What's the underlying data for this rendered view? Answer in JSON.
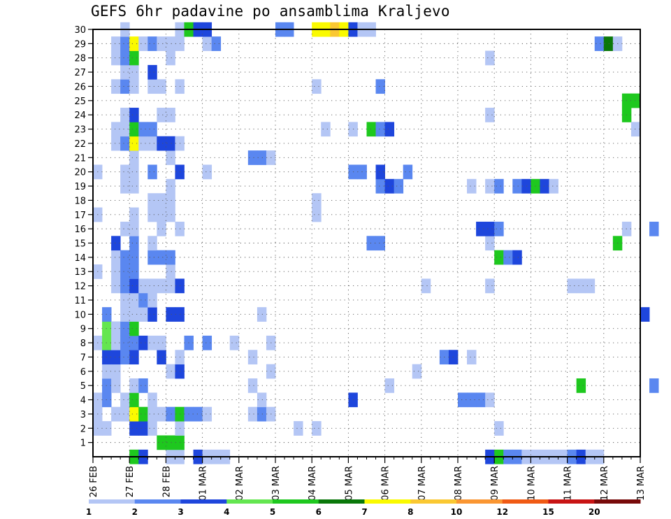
{
  "chart_data": {
    "type": "heatmap",
    "title": "GEFS 6hr padavine po ansamblima Kraljevo",
    "xlabel": "",
    "ylabel": "",
    "x_ticks": [
      "26 FEB",
      "27 FEB",
      "28 FEB",
      "01 MAR",
      "02 MAR",
      "03 MAR",
      "04 MAR",
      "05 MAR",
      "06 MAR",
      "07 MAR",
      "08 MAR",
      "09 MAR",
      "10 MAR",
      "11 MAR",
      "12 MAR",
      "13 MAR"
    ],
    "y_ticks": [
      1,
      2,
      3,
      4,
      5,
      6,
      7,
      8,
      9,
      10,
      11,
      12,
      13,
      14,
      15,
      16,
      17,
      18,
      19,
      20,
      21,
      22,
      23,
      24,
      25,
      26,
      27,
      28,
      29,
      30
    ],
    "x_step_hours": 6,
    "ylim": [
      0,
      30
    ],
    "grid": true,
    "legend": {
      "position": "bottom",
      "levels": [
        "1",
        "2",
        "3",
        "4",
        "5",
        "6",
        "7",
        "8",
        "10",
        "12",
        "15",
        "20"
      ],
      "colors": [
        "#b4c6f5",
        "#5a87f0",
        "#1e46dc",
        "#64e650",
        "#1ec81e",
        "#0a780a",
        "#fafa00",
        "#fac832",
        "#fa9632",
        "#f05a14",
        "#c81414",
        "#780a0a"
      ]
    },
    "cells": [
      [
        0,
        2,
        1
      ],
      [
        0,
        3,
        1
      ],
      [
        0,
        4,
        1
      ],
      [
        0,
        8,
        1
      ],
      [
        0,
        13,
        1
      ],
      [
        0,
        17,
        1
      ],
      [
        0,
        20,
        1
      ],
      [
        1,
        2,
        1
      ],
      [
        1,
        4,
        2
      ],
      [
        1,
        5,
        2
      ],
      [
        1,
        6,
        1
      ],
      [
        1,
        7,
        3
      ],
      [
        1,
        8,
        4
      ],
      [
        1,
        9,
        4
      ],
      [
        1,
        10,
        2
      ],
      [
        2,
        3,
        1
      ],
      [
        2,
        5,
        1
      ],
      [
        2,
        6,
        1
      ],
      [
        2,
        7,
        3
      ],
      [
        2,
        8,
        1
      ],
      [
        2,
        9,
        1
      ],
      [
        2,
        12,
        1
      ],
      [
        2,
        13,
        1
      ],
      [
        2,
        14,
        1
      ],
      [
        2,
        15,
        3
      ],
      [
        2,
        22,
        1
      ],
      [
        2,
        23,
        1
      ],
      [
        2,
        26,
        1
      ],
      [
        2,
        28,
        1
      ],
      [
        2,
        29,
        1
      ],
      [
        3,
        3,
        1
      ],
      [
        3,
        4,
        1
      ],
      [
        3,
        7,
        2
      ],
      [
        3,
        8,
        2
      ],
      [
        3,
        9,
        2
      ],
      [
        3,
        10,
        1
      ],
      [
        3,
        11,
        1
      ],
      [
        3,
        12,
        2
      ],
      [
        3,
        13,
        2
      ],
      [
        3,
        14,
        2
      ],
      [
        3,
        16,
        1
      ],
      [
        3,
        19,
        1
      ],
      [
        3,
        20,
        1
      ],
      [
        3,
        22,
        2
      ],
      [
        3,
        23,
        1
      ],
      [
        3,
        24,
        1
      ],
      [
        3,
        26,
        2
      ],
      [
        3,
        27,
        1
      ],
      [
        3,
        28,
        2
      ],
      [
        3,
        29,
        2
      ],
      [
        3,
        30,
        1
      ],
      [
        4,
        0,
        5
      ],
      [
        4,
        2,
        3
      ],
      [
        4,
        3,
        7
      ],
      [
        4,
        4,
        5
      ],
      [
        4,
        5,
        1
      ],
      [
        4,
        7,
        3
      ],
      [
        4,
        8,
        2
      ],
      [
        4,
        9,
        5
      ],
      [
        4,
        10,
        1
      ],
      [
        4,
        11,
        1
      ],
      [
        4,
        12,
        3
      ],
      [
        4,
        13,
        2
      ],
      [
        4,
        14,
        2
      ],
      [
        4,
        15,
        2
      ],
      [
        4,
        16,
        1
      ],
      [
        4,
        17,
        1
      ],
      [
        4,
        19,
        1
      ],
      [
        4,
        20,
        1
      ],
      [
        4,
        21,
        1
      ],
      [
        4,
        22,
        7
      ],
      [
        4,
        23,
        5
      ],
      [
        4,
        24,
        3
      ],
      [
        4,
        26,
        1
      ],
      [
        4,
        27,
        1
      ],
      [
        4,
        28,
        5
      ],
      [
        4,
        29,
        7
      ],
      [
        5,
        0,
        3
      ],
      [
        5,
        2,
        3
      ],
      [
        5,
        3,
        5
      ],
      [
        5,
        5,
        2
      ],
      [
        5,
        8,
        3
      ],
      [
        5,
        10,
        1
      ],
      [
        5,
        11,
        2
      ],
      [
        5,
        12,
        1
      ],
      [
        5,
        22,
        1
      ],
      [
        5,
        23,
        2
      ],
      [
        5,
        29,
        1
      ],
      [
        6,
        2,
        1
      ],
      [
        6,
        3,
        1
      ],
      [
        6,
        4,
        1
      ],
      [
        6,
        8,
        1
      ],
      [
        6,
        10,
        3
      ],
      [
        6,
        11,
        1
      ],
      [
        6,
        12,
        1
      ],
      [
        6,
        14,
        2
      ],
      [
        6,
        15,
        1
      ],
      [
        6,
        17,
        1
      ],
      [
        6,
        18,
        1
      ],
      [
        6,
        20,
        2
      ],
      [
        6,
        22,
        1
      ],
      [
        6,
        23,
        2
      ],
      [
        6,
        26,
        1
      ],
      [
        6,
        27,
        3
      ],
      [
        6,
        29,
        2
      ],
      [
        7,
        1,
        5
      ],
      [
        7,
        3,
        1
      ],
      [
        7,
        7,
        3
      ],
      [
        7,
        8,
        1
      ],
      [
        7,
        12,
        1
      ],
      [
        7,
        14,
        2
      ],
      [
        7,
        16,
        1
      ],
      [
        7,
        17,
        1
      ],
      [
        7,
        18,
        1
      ],
      [
        7,
        22,
        3
      ],
      [
        7,
        24,
        1
      ],
      [
        7,
        26,
        1
      ],
      [
        7,
        29,
        1
      ],
      [
        8,
        0,
        1
      ],
      [
        8,
        1,
        5
      ],
      [
        8,
        3,
        2
      ],
      [
        8,
        6,
        1
      ],
      [
        8,
        10,
        3
      ],
      [
        8,
        12,
        1
      ],
      [
        8,
        13,
        1
      ],
      [
        8,
        14,
        2
      ],
      [
        8,
        17,
        1
      ],
      [
        8,
        18,
        1
      ],
      [
        8,
        19,
        1
      ],
      [
        8,
        21,
        1
      ],
      [
        8,
        22,
        3
      ],
      [
        8,
        24,
        1
      ],
      [
        8,
        28,
        1
      ],
      [
        8,
        29,
        1
      ],
      [
        9,
        0,
        1
      ],
      [
        9,
        1,
        5
      ],
      [
        9,
        2,
        1
      ],
      [
        9,
        3,
        5
      ],
      [
        9,
        6,
        3
      ],
      [
        9,
        7,
        1
      ],
      [
        9,
        10,
        3
      ],
      [
        9,
        12,
        3
      ],
      [
        9,
        16,
        1
      ],
      [
        9,
        20,
        3
      ],
      [
        9,
        22,
        1
      ],
      [
        9,
        26,
        1
      ],
      [
        9,
        29,
        1
      ],
      [
        9,
        30,
        1
      ],
      [
        10,
        3,
        2
      ],
      [
        10,
        8,
        2
      ],
      [
        10,
        30,
        5
      ],
      [
        11,
        0,
        3
      ],
      [
        11,
        3,
        2
      ],
      [
        11,
        30,
        3
      ],
      [
        12,
        0,
        1
      ],
      [
        12,
        3,
        1
      ],
      [
        12,
        8,
        2
      ],
      [
        12,
        20,
        1
      ],
      [
        12,
        29,
        1
      ],
      [
        12,
        30,
        3
      ],
      [
        13,
        0,
        1
      ],
      [
        13,
        29,
        2
      ],
      [
        14,
        0,
        1
      ],
      [
        15,
        8,
        1
      ],
      [
        17,
        3,
        1
      ],
      [
        17,
        5,
        1
      ],
      [
        17,
        7,
        1
      ],
      [
        17,
        21,
        2
      ],
      [
        18,
        3,
        2
      ],
      [
        18,
        4,
        1
      ],
      [
        18,
        10,
        1
      ],
      [
        18,
        21,
        2
      ],
      [
        19,
        3,
        1
      ],
      [
        19,
        6,
        1
      ],
      [
        19,
        8,
        1
      ],
      [
        19,
        21,
        1
      ],
      [
        20,
        30,
        2
      ],
      [
        21,
        30,
        2
      ],
      [
        22,
        2,
        1
      ],
      [
        24,
        2,
        1
      ],
      [
        24,
        17,
        1
      ],
      [
        24,
        18,
        1
      ],
      [
        24,
        26,
        1
      ],
      [
        24,
        30,
        7
      ],
      [
        25,
        23,
        1
      ],
      [
        25,
        30,
        7
      ],
      [
        26,
        30,
        8
      ],
      [
        27,
        30,
        7
      ],
      [
        28,
        4,
        3
      ],
      [
        28,
        20,
        2
      ],
      [
        28,
        23,
        1
      ],
      [
        28,
        30,
        3
      ],
      [
        29,
        20,
        2
      ],
      [
        29,
        30,
        1
      ],
      [
        30,
        15,
        2
      ],
      [
        30,
        23,
        5
      ],
      [
        30,
        30,
        1
      ],
      [
        31,
        15,
        2
      ],
      [
        31,
        19,
        2
      ],
      [
        31,
        20,
        3
      ],
      [
        31,
        23,
        2
      ],
      [
        31,
        26,
        2
      ],
      [
        32,
        5,
        1
      ],
      [
        32,
        19,
        3
      ],
      [
        32,
        23,
        3
      ],
      [
        33,
        19,
        2
      ],
      [
        34,
        20,
        2
      ],
      [
        35,
        6,
        1
      ],
      [
        36,
        12,
        1
      ],
      [
        38,
        7,
        2
      ],
      [
        39,
        7,
        3
      ],
      [
        40,
        4,
        2
      ],
      [
        41,
        4,
        2
      ],
      [
        41,
        7,
        1
      ],
      [
        41,
        19,
        1
      ],
      [
        42,
        4,
        2
      ],
      [
        42,
        16,
        3
      ],
      [
        43,
        0,
        3
      ],
      [
        43,
        4,
        1
      ],
      [
        43,
        12,
        1
      ],
      [
        43,
        15,
        1
      ],
      [
        43,
        16,
        3
      ],
      [
        43,
        19,
        1
      ],
      [
        43,
        24,
        1
      ],
      [
        43,
        28,
        1
      ],
      [
        44,
        0,
        5
      ],
      [
        44,
        2,
        1
      ],
      [
        44,
        14,
        5
      ],
      [
        44,
        16,
        2
      ],
      [
        44,
        19,
        2
      ],
      [
        45,
        0,
        2
      ],
      [
        45,
        14,
        2
      ],
      [
        46,
        0,
        2
      ],
      [
        46,
        14,
        3
      ],
      [
        46,
        19,
        2
      ],
      [
        47,
        0,
        1
      ],
      [
        47,
        19,
        3
      ],
      [
        48,
        0,
        1
      ],
      [
        48,
        19,
        5
      ],
      [
        49,
        0,
        1
      ],
      [
        49,
        19,
        3
      ],
      [
        50,
        0,
        1
      ],
      [
        50,
        19,
        1
      ],
      [
        51,
        0,
        1
      ],
      [
        52,
        0,
        2
      ],
      [
        52,
        12,
        1
      ],
      [
        53,
        0,
        3
      ],
      [
        53,
        5,
        5
      ],
      [
        53,
        12,
        1
      ],
      [
        54,
        0,
        1
      ],
      [
        54,
        12,
        1
      ],
      [
        55,
        0,
        1
      ],
      [
        55,
        29,
        2
      ],
      [
        56,
        29,
        6
      ],
      [
        57,
        15,
        5
      ],
      [
        57,
        29,
        1
      ],
      [
        58,
        16,
        1
      ],
      [
        58,
        24,
        5
      ],
      [
        58,
        25,
        5
      ],
      [
        59,
        23,
        1
      ],
      [
        59,
        25,
        5
      ],
      [
        60,
        10,
        3
      ],
      [
        61,
        5,
        2
      ],
      [
        61,
        16,
        2
      ]
    ]
  }
}
